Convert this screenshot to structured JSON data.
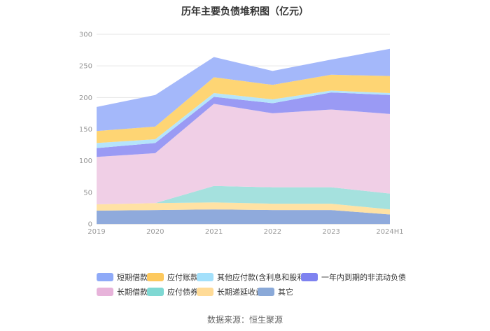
{
  "chart_data": {
    "type": "area",
    "stacked": true,
    "title": "历年主要负债堆积图（亿元）",
    "x": [
      "2019",
      "2020",
      "2021",
      "2022",
      "2023",
      "2024H1"
    ],
    "ylim": [
      0,
      300
    ],
    "yticks": [
      "0",
      "50",
      "100",
      "150",
      "200",
      "250",
      "300"
    ],
    "grid": true,
    "legend_position": "bottom",
    "series": [
      {
        "name": "其它",
        "color": "#8faadc",
        "values": [
          21,
          22,
          23,
          22,
          22,
          15
        ]
      },
      {
        "name": "长期递延收益",
        "color": "#ffe2a4",
        "values": [
          10,
          11,
          11,
          10,
          10,
          8
        ]
      },
      {
        "name": "应付债券",
        "color": "#a5e1de",
        "values": [
          0,
          0,
          26,
          26,
          26,
          25
        ]
      },
      {
        "name": "长期借款",
        "color": "#f0cfe6",
        "values": [
          75,
          79,
          130,
          117,
          123,
          126
        ]
      },
      {
        "name": "一年内到期的非流动负债",
        "color": "#9a9af4",
        "values": [
          14,
          16,
          11,
          16,
          27,
          30
        ]
      },
      {
        "name": "其他应付款(含利息和股利)",
        "color": "#b5e4fb",
        "values": [
          8,
          6,
          6,
          6,
          3,
          3
        ]
      },
      {
        "name": "应付账款",
        "color": "#fed574",
        "values": [
          19,
          20,
          25,
          23,
          25,
          27
        ]
      },
      {
        "name": "短期借款",
        "color": "#a4b8fa",
        "values": [
          38,
          50,
          32,
          22,
          24,
          43
        ]
      }
    ]
  },
  "legend": {
    "row1": [
      {
        "label": "短期借款",
        "color": "#8faaf8"
      },
      {
        "label": "应付账款",
        "color": "#fdc95e"
      },
      {
        "label": "其他应付款(含利息和股利)",
        "color": "#a3e0fb"
      },
      {
        "label": "一年内到期的非流动负债",
        "color": "#7e82f0"
      }
    ],
    "row2": [
      {
        "label": "长期借款",
        "color": "#e7b3da"
      },
      {
        "label": "应付债券",
        "color": "#7fd8d3"
      },
      {
        "label": "长期递延收益",
        "color": "#ffdb97"
      },
      {
        "label": "其它",
        "color": "#8aa9d8"
      }
    ]
  },
  "source": "数据来源：恒生聚源"
}
